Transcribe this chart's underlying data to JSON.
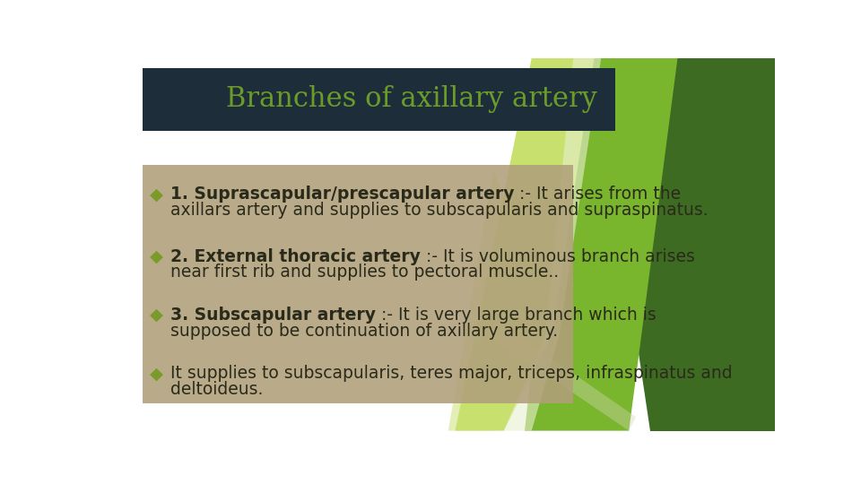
{
  "title": "Branches of axillary artery",
  "title_color": "#6b9c2a",
  "title_bg_color": "#1e2d3a",
  "slide_bg_color": "#ffffff",
  "content_box_color": "#b0a07a",
  "text_color": "#2a2a1a",
  "bullet_color": "#7a9a2a",
  "bullet_char": "◆",
  "items": [
    {
      "bold": "1. Suprascapular/prescapular artery",
      "normal": " :- It arises from the axillars artery and supplies to subscapularis and supraspinatus."
    },
    {
      "bold": "2. External thoracic artery",
      "normal": " :- It is voluminous branch arises near first rib and supplies to pectoral muscle.."
    },
    {
      "bold": "3. Subscapular artery",
      "normal": " :- It is very large branch which is supposed to be continuation of axillary artery."
    },
    {
      "bold": "",
      "normal": "It supplies to subscapularis, teres major, triceps, infraspinatus and deltoideus."
    }
  ],
  "green_dark": "#3d6b22",
  "green_mid": "#5a8c2a",
  "green_light": "#7ab52e",
  "green_pale": "#c8e06e",
  "green_very_pale": "#ddeea0"
}
